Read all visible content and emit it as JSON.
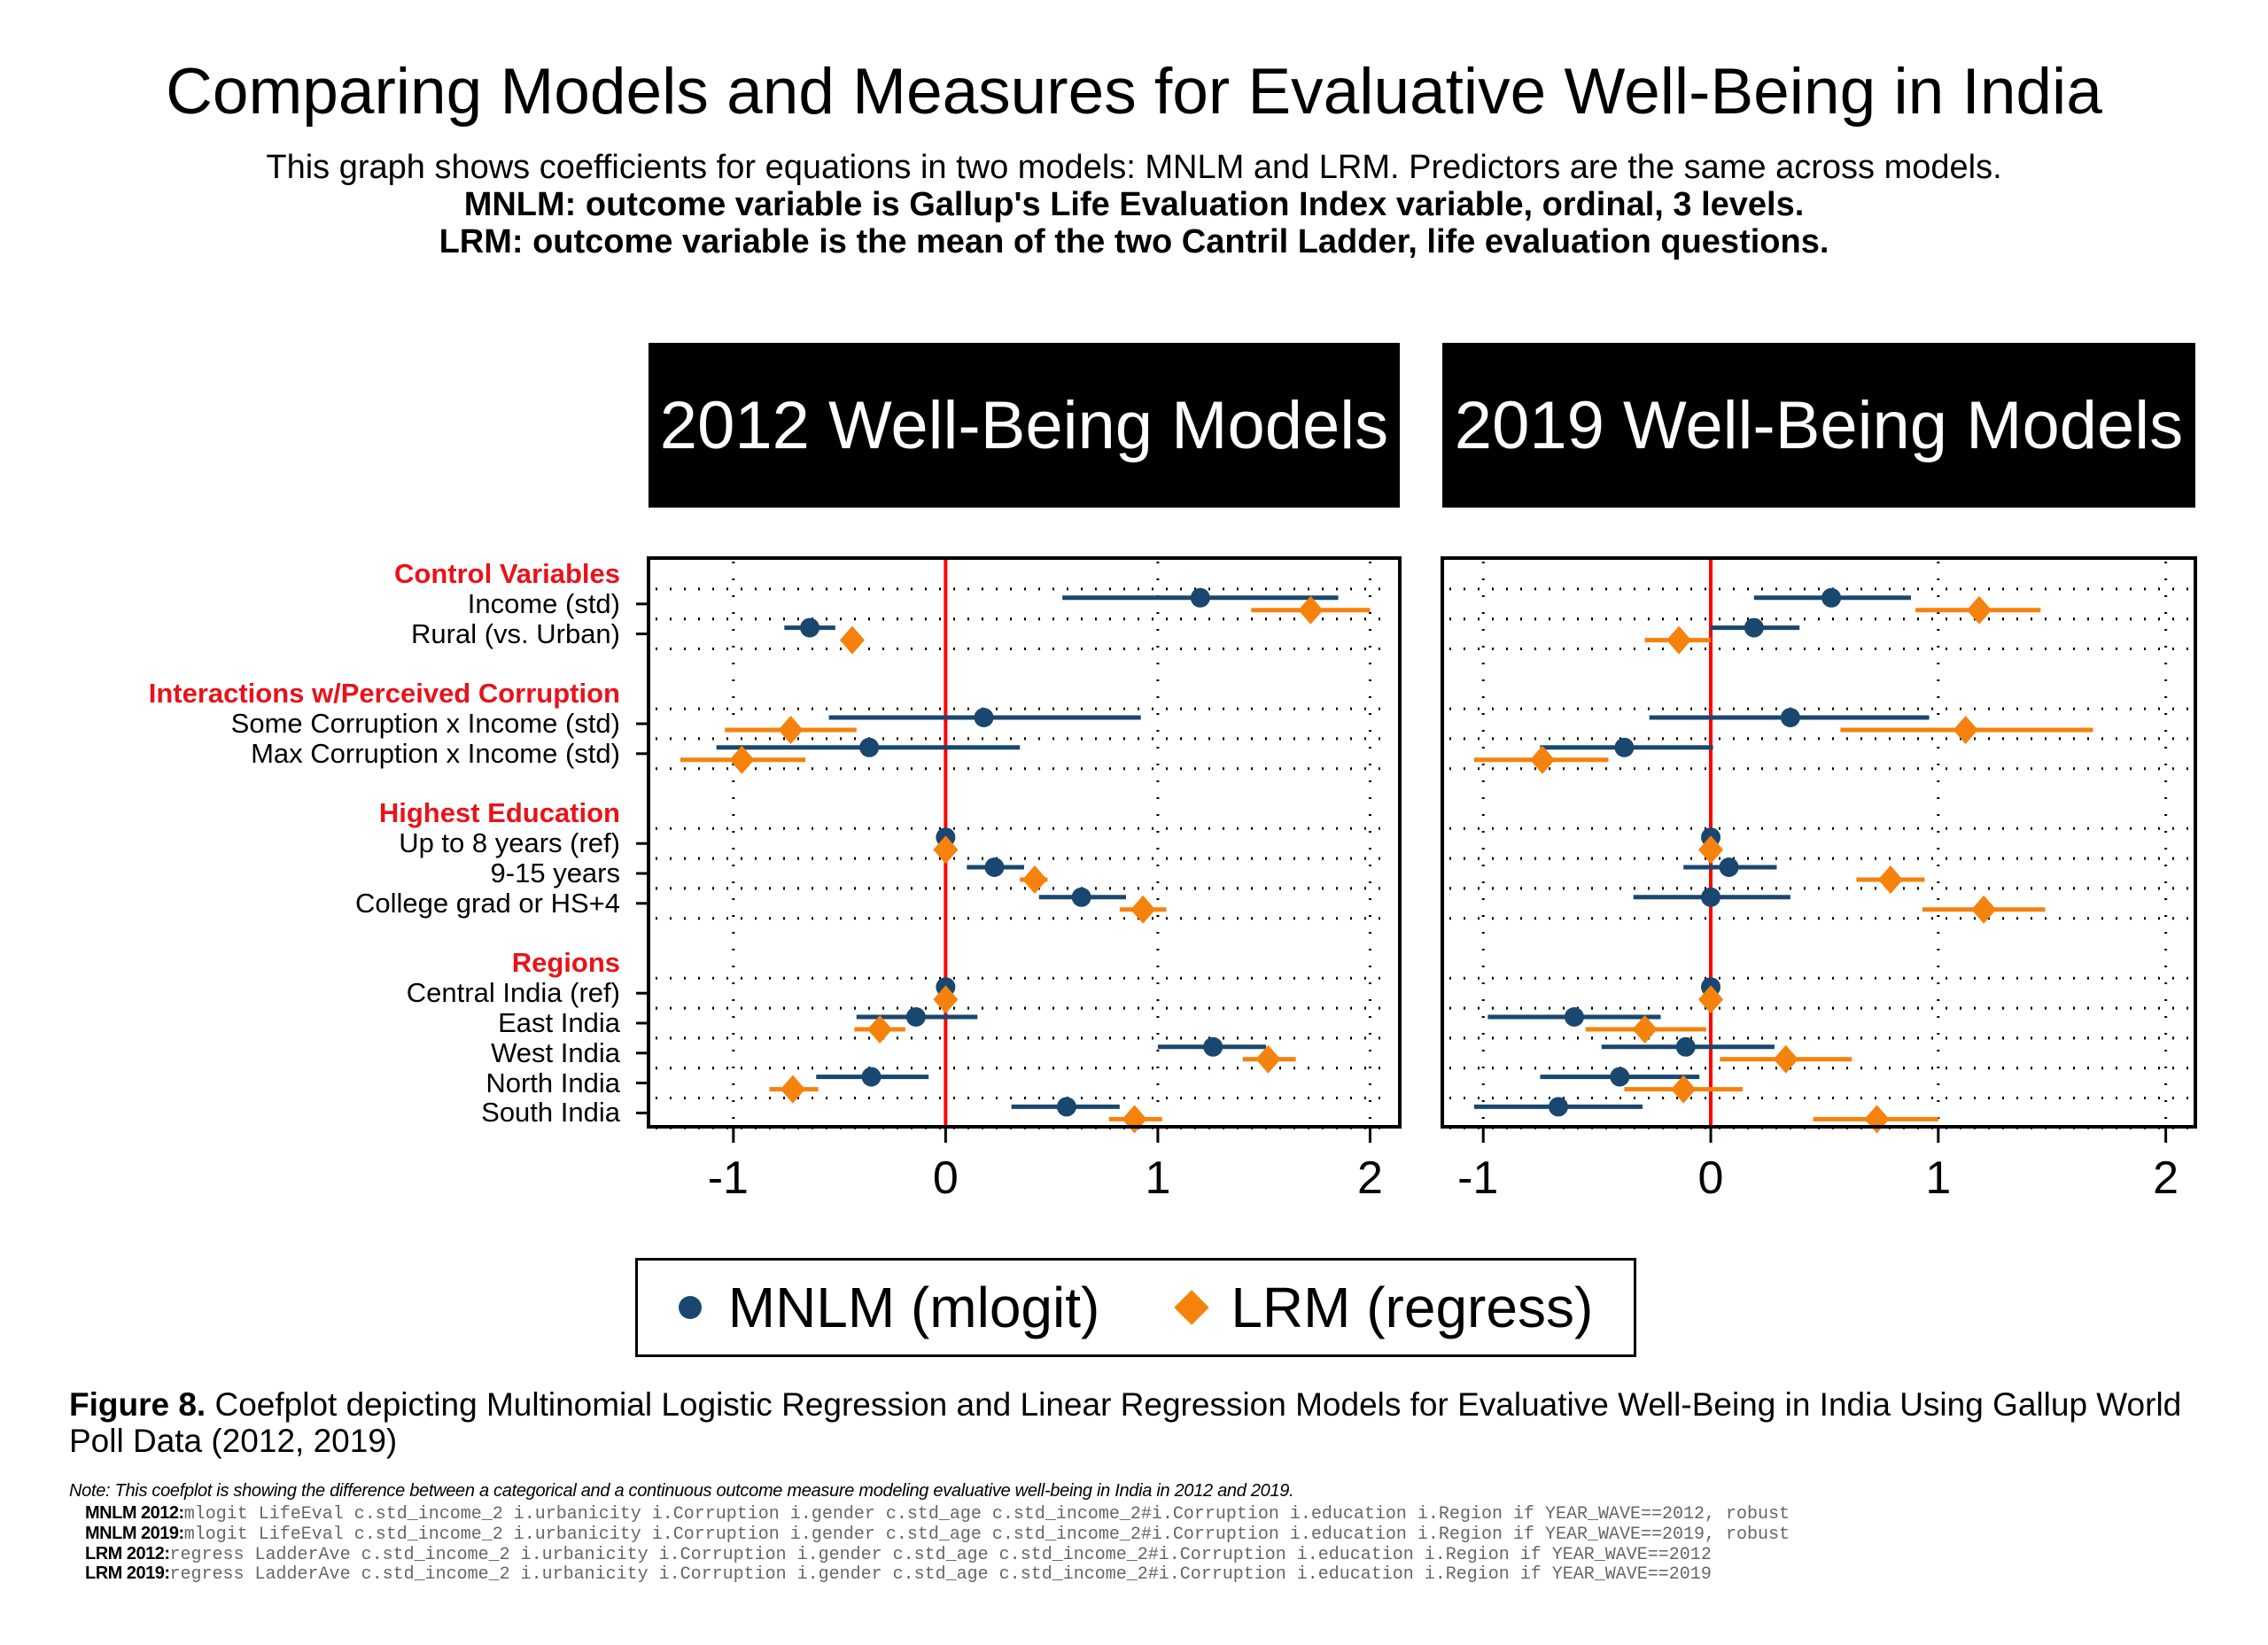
{
  "title": "Comparing Models and Measures for Evaluative Well-Being in India",
  "subtitle": [
    "This graph shows coefficients for equations in two models: MNLM and LRM. Predictors are the same across models.",
    "MNLM: outcome variable is Gallup's Life Evaluation Index variable, ordinal, 3 levels.",
    "LRM: outcome variable is the mean of the two Cantril Ladder, life evaluation questions."
  ],
  "colors": {
    "mnlm": "#1a476f",
    "lrm": "#f5820d",
    "zero_line": "#ff0000",
    "group_heading": "#e8131a",
    "header_bg": "#000000"
  },
  "y_axis": {
    "groups": [
      {
        "heading": "Control Variables",
        "items": [
          "Income (std)",
          "Rural (vs. Urban)"
        ]
      },
      {
        "heading": "Interactions w/Perceived Corruption",
        "items": [
          "Some Corruption x Income (std)",
          "Max Corruption x Income (std)"
        ]
      },
      {
        "heading": "Highest Education",
        "items": [
          "Up to 8 years (ref)",
          "9-15 years",
          "College grad or HS+4"
        ]
      },
      {
        "heading": "Regions",
        "items": [
          "Central India (ref)",
          "East India",
          "West India",
          "North India",
          "South India"
        ]
      }
    ]
  },
  "legend": {
    "position": "bottom",
    "items": [
      {
        "label": "MNLM (mlogit)",
        "marker": "circle"
      },
      {
        "label": "LRM (regress)",
        "marker": "diamond"
      }
    ]
  },
  "chart_data": [
    {
      "type": "coefplot",
      "title": "2012 Well-Being Models",
      "xlim": [
        -1.4,
        2.14
      ],
      "xticks": [
        "-1",
        "0",
        "1",
        "2"
      ],
      "xtick_values": [
        -1,
        0,
        1,
        2
      ],
      "reference_line": 0,
      "grid": true,
      "categories": [
        "Income (std)",
        "Rural (vs. Urban)",
        "Some Corruption x Income (std)",
        "Max Corruption x Income (std)",
        "Up to 8 years (ref)",
        "9-15 years",
        "College grad or HS+4",
        "Central India (ref)",
        "East India",
        "West India",
        "North India",
        "South India"
      ],
      "series": [
        {
          "name": "MNLM (mlogit)",
          "values": [
            1.2,
            -0.64,
            0.18,
            -0.36,
            0,
            0.23,
            0.64,
            0,
            -0.14,
            1.26,
            -0.35,
            0.57
          ],
          "ci_low": [
            0.55,
            -0.76,
            -0.55,
            -1.08,
            0,
            0.1,
            0.44,
            0,
            -0.42,
            1.0,
            -0.61,
            0.31
          ],
          "ci_high": [
            1.85,
            -0.52,
            0.92,
            0.35,
            0,
            0.37,
            0.85,
            0,
            0.15,
            1.51,
            -0.08,
            0.82
          ]
        },
        {
          "name": "LRM (regress)",
          "values": [
            1.72,
            -0.44,
            -0.73,
            -0.96,
            0,
            0.42,
            0.93,
            0,
            -0.31,
            1.52,
            -0.72,
            0.89
          ],
          "ci_low": [
            1.44,
            -0.47,
            -1.04,
            -1.25,
            0,
            0.35,
            0.82,
            0,
            -0.43,
            1.4,
            -0.83,
            0.77
          ],
          "ci_high": [
            2.0,
            -0.41,
            -0.42,
            -0.66,
            0,
            0.48,
            1.04,
            0,
            -0.19,
            1.65,
            -0.6,
            1.02
          ]
        }
      ]
    },
    {
      "type": "coefplot",
      "title": "2019 Well-Being Models",
      "xlim": [
        -1.18,
        2.13
      ],
      "xticks": [
        "-1",
        "0",
        "1",
        "2"
      ],
      "xtick_values": [
        -1,
        0,
        1,
        2
      ],
      "reference_line": 0,
      "grid": true,
      "categories": [
        "Income (std)",
        "Rural (vs. Urban)",
        "Some Corruption x Income (std)",
        "Max Corruption x Income (std)",
        "Up to 8 years (ref)",
        "9-15 years",
        "College grad or HS+4",
        "Central India (ref)",
        "East India",
        "West India",
        "North India",
        "South India"
      ],
      "series": [
        {
          "name": "MNLM (mlogit)",
          "values": [
            0.53,
            0.19,
            0.35,
            -0.38,
            0,
            0.08,
            0.0,
            0,
            -0.6,
            -0.11,
            -0.4,
            -0.67
          ],
          "ci_low": [
            0.19,
            0.0,
            -0.27,
            -0.75,
            0,
            -0.12,
            -0.34,
            0,
            -0.98,
            -0.48,
            -0.75,
            -1.04
          ],
          "ci_high": [
            0.88,
            0.39,
            0.96,
            0.01,
            0,
            0.29,
            0.35,
            0,
            -0.22,
            0.28,
            -0.05,
            -0.3
          ]
        },
        {
          "name": "LRM (regress)",
          "values": [
            1.18,
            -0.14,
            1.12,
            -0.74,
            0,
            0.79,
            1.2,
            0,
            -0.29,
            0.33,
            -0.12,
            0.73
          ],
          "ci_low": [
            0.9,
            -0.29,
            0.57,
            -1.04,
            0,
            0.64,
            0.93,
            0,
            -0.55,
            0.04,
            -0.38,
            0.45
          ],
          "ci_high": [
            1.45,
            0.0,
            1.68,
            -0.45,
            0,
            0.94,
            1.47,
            0,
            -0.02,
            0.62,
            0.14,
            1.0
          ]
        }
      ]
    }
  ],
  "caption": {
    "label": "Figure 8.",
    "text": "Coefplot depicting Multinomial Logistic Regression and Linear Regression Models for Evaluative Well-Being in India Using Gallup World Poll Data (2012, 2019)"
  },
  "note": "Note: This coefplot is showing the difference between a categorical and a continuous outcome measure modeling evaluative well-being in India in 2012 and 2019.",
  "code_lines": [
    {
      "label": "MNLM 2012:",
      "cmd": "mlogit LifeEval c.std_income_2 i.urbanicity i.Corruption i.gender c.std_age c.std_income_2#i.Corruption i.education i.Region if YEAR_WAVE==2012, robust"
    },
    {
      "label": "MNLM 2019:",
      "cmd": "mlogit LifeEval c.std_income_2 i.urbanicity i.Corruption i.gender c.std_age c.std_income_2#i.Corruption i.education i.Region if YEAR_WAVE==2019, robust"
    },
    {
      "label": "LRM 2012:",
      "cmd": "regress LadderAve c.std_income_2 i.urbanicity i.Corruption i.gender c.std_age c.std_income_2#i.Corruption i.education i.Region if YEAR_WAVE==2012"
    },
    {
      "label": "LRM 2019:",
      "cmd": "regress LadderAve c.std_income_2 i.urbanicity i.Corruption i.gender c.std_age c.std_income_2#i.Corruption i.education i.Region if YEAR_WAVE==2019"
    }
  ]
}
